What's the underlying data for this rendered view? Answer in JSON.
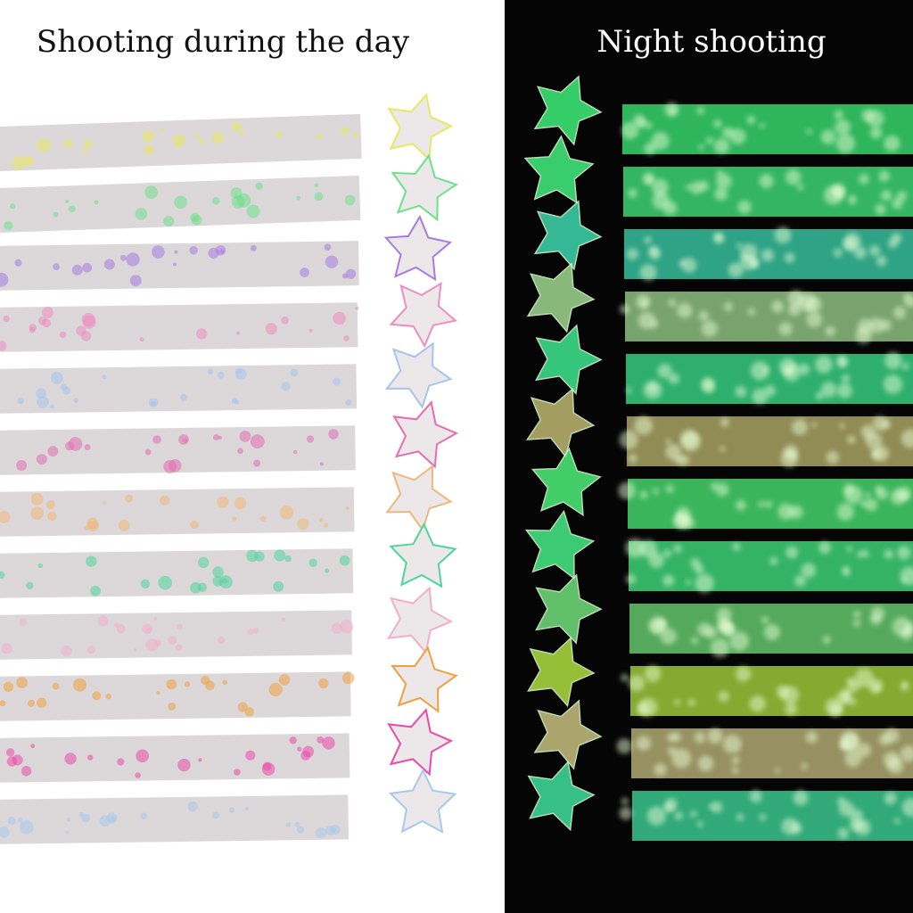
{
  "panels": [
    {
      "title": "Shooting during the day"
    },
    {
      "title": "Night shooting"
    }
  ]
}
